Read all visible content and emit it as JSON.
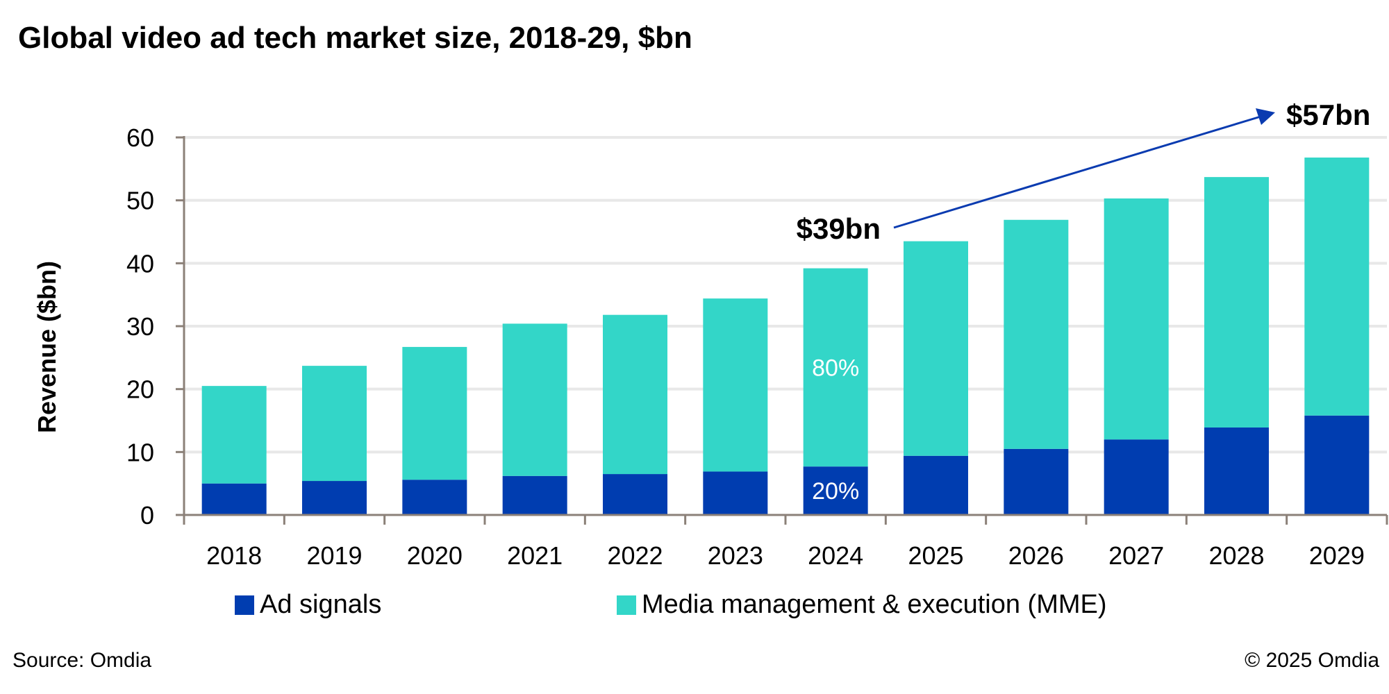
{
  "title": "Global video ad tech market size, 2018-29, $bn",
  "footer": {
    "source": "Source: Omdia",
    "copyright": "© 2025 Omdia"
  },
  "colors": {
    "ad_signals": "#003DB0",
    "mme": "#33D6C8",
    "grid": "#E8E8E8",
    "axis": "#8B8078",
    "arrow": "#0A3BB0"
  },
  "chart_data": {
    "type": "bar",
    "stacked": true,
    "title": "Global video ad tech market size, 2018-29, $bn",
    "xlabel": "",
    "ylabel": "Revenue ($bn)",
    "ylim": [
      0,
      60
    ],
    "yticks": [
      0,
      10,
      20,
      30,
      40,
      50,
      60
    ],
    "grid": true,
    "legend_position": "bottom",
    "categories": [
      "2018",
      "2019",
      "2020",
      "2021",
      "2022",
      "2023",
      "2024",
      "2025",
      "2026",
      "2027",
      "2028",
      "2029"
    ],
    "series": [
      {
        "name": "Ad signals",
        "values": [
          5.0,
          5.4,
          5.6,
          6.2,
          6.5,
          6.9,
          7.7,
          9.4,
          10.5,
          12.0,
          13.9,
          15.8
        ]
      },
      {
        "name": "Media management & execution (MME)",
        "values": [
          15.5,
          18.3,
          21.1,
          24.2,
          25.3,
          27.5,
          31.5,
          34.1,
          36.4,
          38.3,
          39.8,
          41.0
        ]
      }
    ],
    "totals": [
      20.5,
      23.7,
      26.7,
      30.4,
      31.8,
      34.4,
      39.2,
      43.5,
      46.9,
      50.3,
      53.7,
      56.8
    ],
    "annotations": {
      "start_label": "$39bn",
      "end_label": "$57bn",
      "share_labels": {
        "category": "2024",
        "ad_signals": "20%",
        "mme": "80%"
      }
    }
  }
}
